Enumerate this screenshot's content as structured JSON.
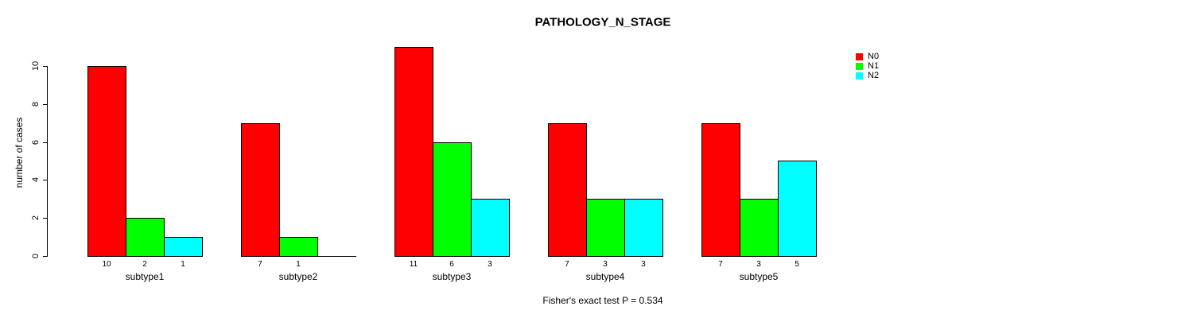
{
  "chart_data": {
    "type": "bar",
    "title": "PATHOLOGY_N_STAGE",
    "ylabel": "number of cases",
    "xlabel": "",
    "caption": "Fisher's exact test P = 0.534",
    "categories": [
      "subtype1",
      "subtype2",
      "subtype3",
      "subtype4",
      "subtype5"
    ],
    "series": [
      {
        "name": "N0",
        "color": "#ff0000",
        "values": [
          10,
          7,
          11,
          7,
          7
        ]
      },
      {
        "name": "N1",
        "color": "#00ff00",
        "values": [
          2,
          1,
          6,
          3,
          3
        ]
      },
      {
        "name": "N2",
        "color": "#00ffff",
        "values": [
          1,
          0,
          3,
          3,
          5
        ]
      }
    ],
    "bar_value_labels": [
      [
        "10",
        "2",
        "1"
      ],
      [
        "7",
        "1",
        ""
      ],
      [
        "11",
        "6",
        "3"
      ],
      [
        "7",
        "3",
        "3"
      ],
      [
        "7",
        "3",
        "5"
      ]
    ],
    "yticks": [
      0,
      2,
      4,
      6,
      8,
      10
    ],
    "ylim": [
      0,
      10
    ],
    "grid": false,
    "legend_position": "top-right",
    "axis_color": "#000000",
    "bar_border_color": "#000000"
  }
}
